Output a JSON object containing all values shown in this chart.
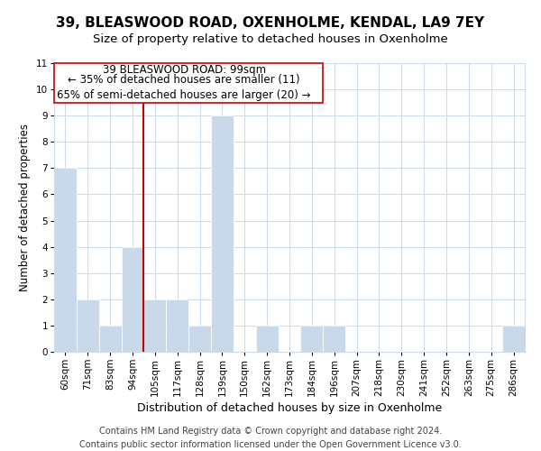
{
  "title1": "39, BLEASWOOD ROAD, OXENHOLME, KENDAL, LA9 7EY",
  "title2": "Size of property relative to detached houses in Oxenholme",
  "xlabel": "Distribution of detached houses by size in Oxenholme",
  "ylabel": "Number of detached properties",
  "bin_labels": [
    "60sqm",
    "71sqm",
    "83sqm",
    "94sqm",
    "105sqm",
    "117sqm",
    "128sqm",
    "139sqm",
    "150sqm",
    "162sqm",
    "173sqm",
    "184sqm",
    "196sqm",
    "207sqm",
    "218sqm",
    "230sqm",
    "241sqm",
    "252sqm",
    "263sqm",
    "275sqm",
    "286sqm"
  ],
  "bar_heights": [
    7,
    2,
    1,
    4,
    2,
    2,
    1,
    9,
    0,
    1,
    0,
    1,
    1,
    0,
    0,
    0,
    0,
    0,
    0,
    0,
    1
  ],
  "bar_color": "#c9d9ea",
  "bar_edge_color": "#ffffff",
  "subject_line_color": "#cc0000",
  "annotation_text_line1": "39 BLEASWOOD ROAD: 99sqm",
  "annotation_text_line2": "← 35% of detached houses are smaller (11)",
  "annotation_text_line3": "65% of semi-detached houses are larger (20) →",
  "annotation_fontsize": 8.5,
  "ylim": [
    0,
    11
  ],
  "yticks": [
    0,
    1,
    2,
    3,
    4,
    5,
    6,
    7,
    8,
    9,
    10,
    11
  ],
  "footer_line1": "Contains HM Land Registry data © Crown copyright and database right 2024.",
  "footer_line2": "Contains public sector information licensed under the Open Government Licence v3.0.",
  "title1_fontsize": 11,
  "title2_fontsize": 9.5,
  "xlabel_fontsize": 9,
  "ylabel_fontsize": 8.5,
  "tick_fontsize": 7.5,
  "footer_fontsize": 7,
  "grid_color": "#ccd9e8",
  "background_color": "#ffffff"
}
